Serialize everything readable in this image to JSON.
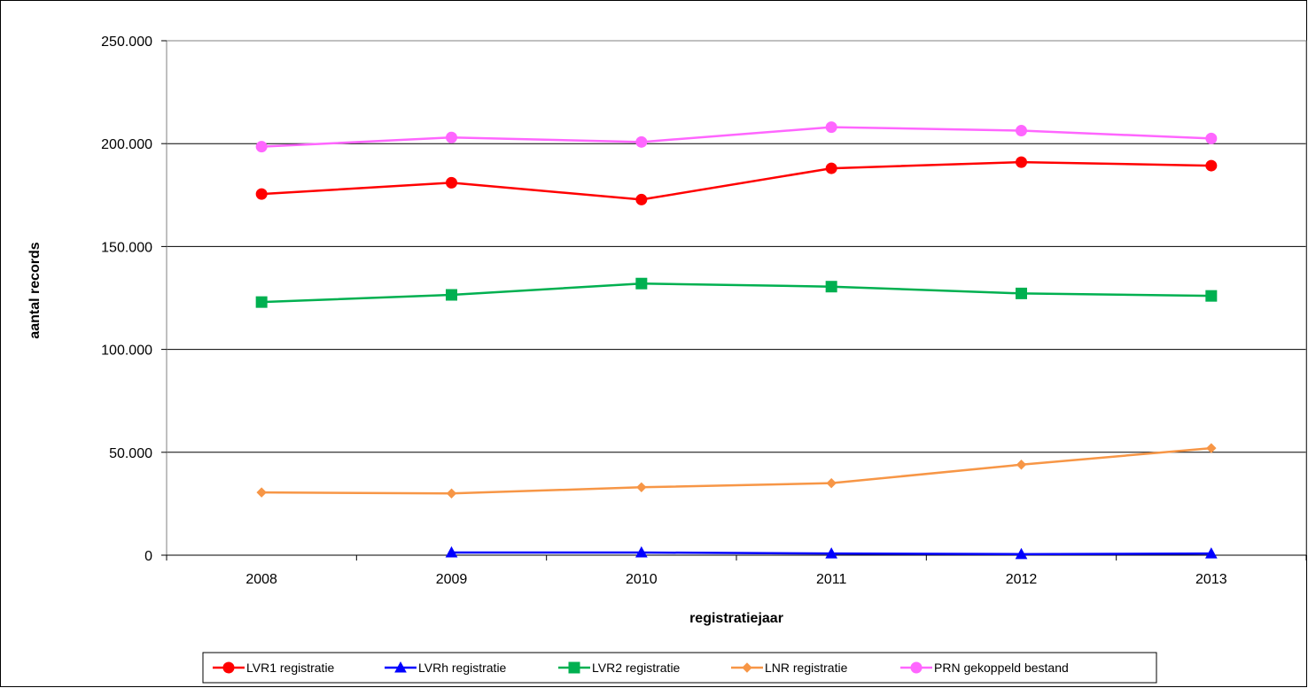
{
  "chart_data": {
    "type": "line",
    "title": "",
    "xlabel": "registratiejaar",
    "ylabel": "aantal records",
    "categories": [
      "2008",
      "2009",
      "2010",
      "2011",
      "2012",
      "2013"
    ],
    "ylim": [
      0,
      250000
    ],
    "yticks": [
      0,
      50000,
      100000,
      150000,
      200000,
      250000
    ],
    "ytick_labels": [
      "0",
      "50.000",
      "100.000",
      "150.000",
      "200.000",
      "250.000"
    ],
    "grid": true,
    "legend_position": "bottom",
    "series": [
      {
        "name": "LVR1 registratie",
        "color": "#ff0000",
        "marker": "circle",
        "values": [
          175500,
          181000,
          172800,
          188000,
          191000,
          189300
        ]
      },
      {
        "name": "LVRh registratie",
        "color": "#0000ff",
        "marker": "triangle",
        "values": [
          null,
          1300,
          1300,
          800,
          500,
          800
        ]
      },
      {
        "name": "LVR2 registratie",
        "color": "#00b050",
        "marker": "square",
        "values": [
          123000,
          126500,
          132000,
          130500,
          127200,
          126000
        ]
      },
      {
        "name": "LNR registratie",
        "color": "#f79646",
        "marker": "diamond",
        "values": [
          30500,
          30000,
          33000,
          35000,
          44000,
          52000
        ]
      },
      {
        "name": "PRN gekoppeld bestand",
        "color": "#ff66ff",
        "marker": "circle",
        "values": [
          198500,
          203000,
          200800,
          208000,
          206300,
          202500
        ]
      }
    ]
  }
}
